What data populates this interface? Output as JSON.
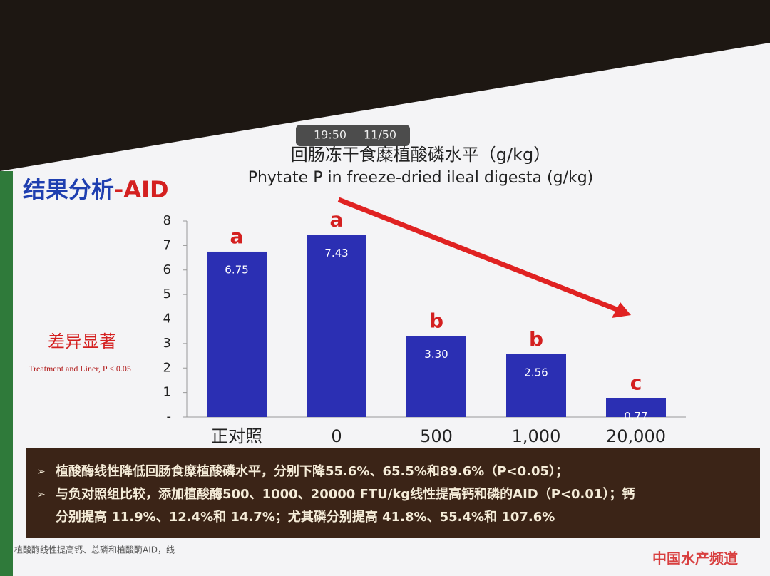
{
  "overlay": {
    "time": "19:50",
    "page": "11/50"
  },
  "heading": {
    "main": "结果分析",
    "accent": "-AID"
  },
  "chart_data": {
    "type": "bar",
    "title": "回肠冻干食糜植酸磷水平（g/kg）",
    "subtitle": "Phytate P in freeze-dried ileal digesta (g/kg)",
    "categories": [
      "正对照",
      "0",
      "500",
      "1,000",
      "20,000"
    ],
    "values": [
      6.75,
      7.43,
      3.3,
      2.56,
      0.77
    ],
    "value_labels": [
      "6.75",
      "7.43",
      "3.30",
      "2.56",
      "0.77"
    ],
    "significance_letters": [
      "a",
      "a",
      "b",
      "b",
      "c"
    ],
    "color": "#2b2fb3",
    "letter_color": "#d42020",
    "ylim": [
      0,
      8
    ],
    "yticks": [
      {
        "value": 0,
        "label": "-"
      },
      1,
      2,
      3,
      4,
      5,
      6,
      7,
      8
    ],
    "annotation": "差异显著",
    "annotation_note": "Treatment and Liner, P < 0.05"
  },
  "summary": {
    "lines": [
      "植酸酶线性降低回肠食糜植酸磷水平，分别下降55.6%、65.5%和89.6%（P<0.05）；",
      "与负对照组比较，添加植酸酶500、1000、20000 FTU/kg线性提高钙和磷的AID（P<0.01）；钙",
      "分别提高 11.9%、12.4%和 14.7%；尤其磷分别提高 41.8%、55.4%和 107.6%"
    ]
  },
  "footnote": "植酸酶线性提高钙、总磷和植酸酶AID，线",
  "watermark": "中国水产频道"
}
